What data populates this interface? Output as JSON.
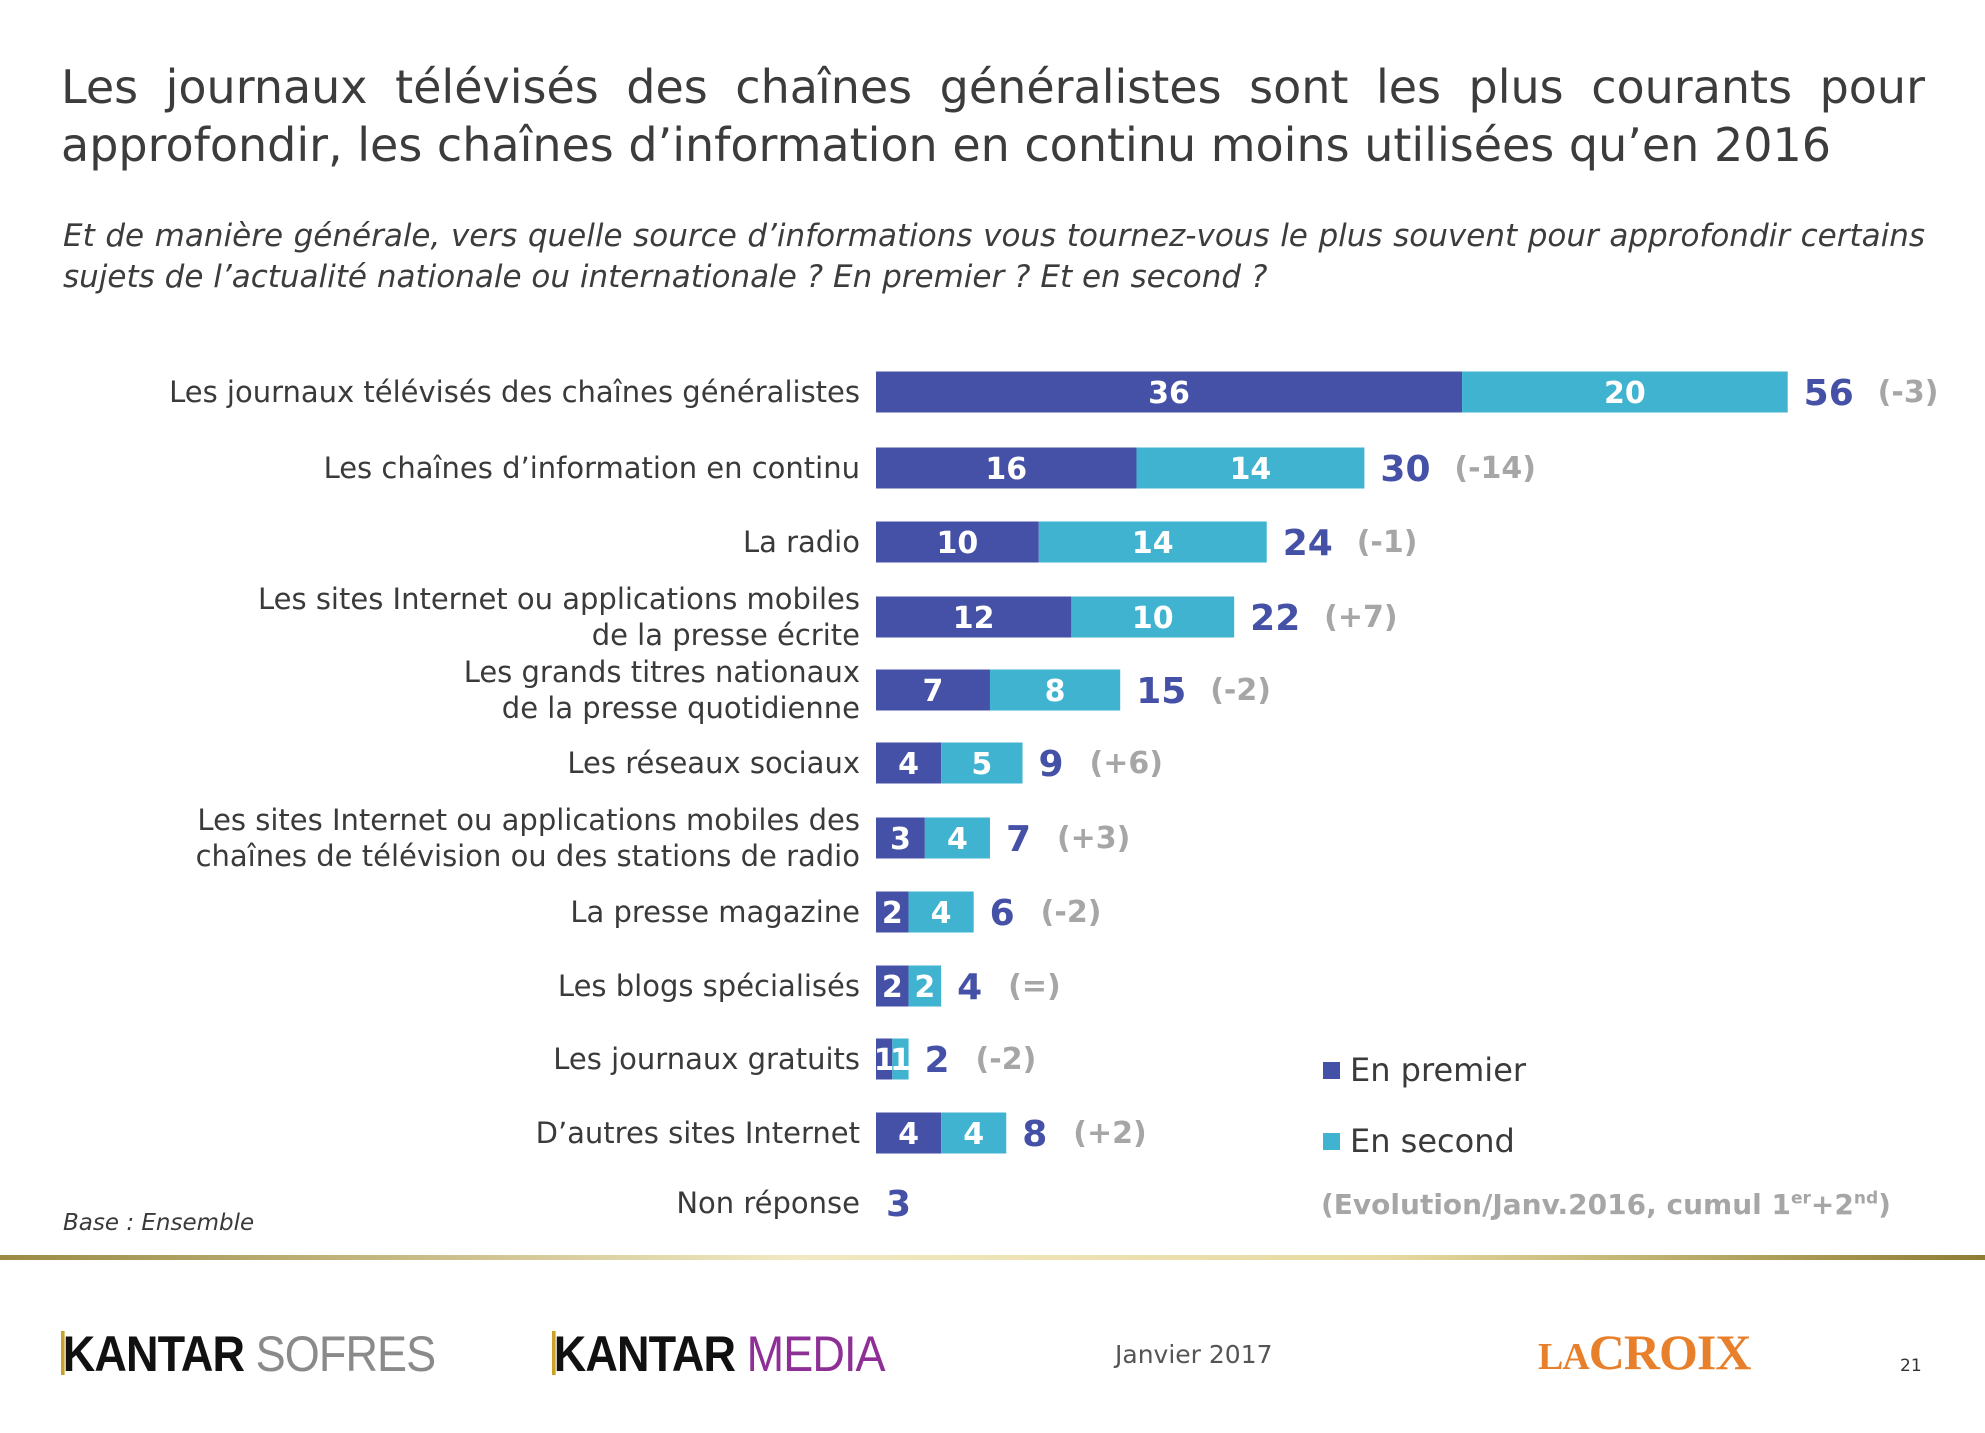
{
  "title": "Les journaux télévisés des chaînes généralistes sont les plus courants pour approfondir, les chaînes d’information en continu moins utilisées qu’en 2016",
  "subtitle": "Et de manière générale, vers quelle source d’informations vous tournez-vous le plus souvent  pour approfondir certains sujets de l’actualité nationale ou internationale ? En premier ? Et en second ?",
  "base_note": "Base : Ensemble",
  "colors": {
    "premier": "#4551a6",
    "second": "#3fb3cf",
    "total": "#4551a6",
    "evolution": "#a6a6a6"
  },
  "chart_data": {
    "type": "bar",
    "orientation": "horizontal",
    "stacked": true,
    "categories": [
      [
        "Les journaux télévisés des chaînes généralistes"
      ],
      [
        "Les chaînes d’information en continu"
      ],
      [
        "La radio"
      ],
      [
        "Les sites Internet ou applications mobiles",
        "de la presse écrite"
      ],
      [
        "Les grands titres nationaux",
        "de la presse quotidienne"
      ],
      [
        "Les réseaux sociaux"
      ],
      [
        "Les sites Internet ou applications mobiles des",
        "chaînes de télévision ou des stations de radio"
      ],
      [
        "La presse magazine"
      ],
      [
        "Les blogs spécialisés"
      ],
      [
        "Les journaux gratuits"
      ],
      [
        "D’autres sites Internet"
      ],
      [
        "Non réponse"
      ]
    ],
    "series": [
      {
        "name": "En premier",
        "values": [
          36,
          16,
          10,
          12,
          7,
          4,
          3,
          2,
          2,
          1,
          4,
          null
        ]
      },
      {
        "name": "En second",
        "values": [
          20,
          14,
          14,
          10,
          8,
          5,
          4,
          4,
          2,
          1,
          4,
          null
        ]
      }
    ],
    "totals": [
      56,
      30,
      24,
      22,
      15,
      9,
      7,
      6,
      4,
      2,
      8,
      3
    ],
    "evolution": [
      "(-3)",
      "(-14)",
      "(-1)",
      "(+7)",
      "(-2)",
      "(+6)",
      "(+3)",
      "(-2)",
      "(=)",
      "(-2)",
      "(+2)",
      ""
    ],
    "evolution_note": {
      "text": "(Evolution/Janv.2016, cumul 1",
      "sup1": "er",
      "mid": "+2",
      "sup2": "nd",
      "end": ")"
    },
    "legend": [
      "En premier",
      "En second"
    ],
    "legend_position": "bottom-right",
    "xlim": [
      0,
      56
    ],
    "grid": false
  },
  "footer": {
    "logo1_a": "KANTAR",
    "logo1_b": "SOFRES",
    "logo2_a": "KANTAR",
    "logo2_b": "MEDIA",
    "date": "Janvier 2017",
    "logo3_a": "LA",
    "logo3_b": "CROIX",
    "page_number": "21"
  }
}
